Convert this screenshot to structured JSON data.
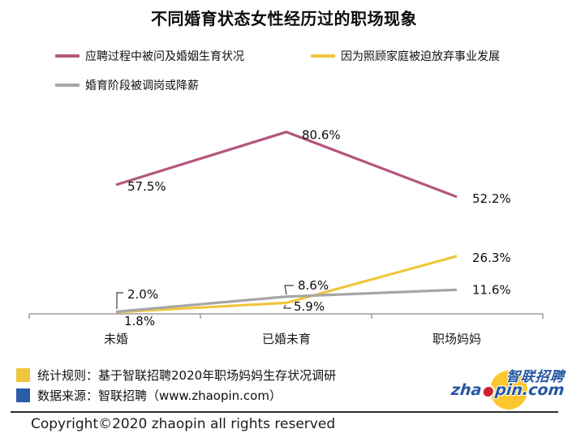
{
  "title": "不同婚育状态女性经历过的职场现象",
  "chart_data": {
    "type": "line",
    "categories": [
      "未婚",
      "已婚未育",
      "职场妈妈"
    ],
    "series": [
      {
        "name": "应聘过程中被问及婚姻生育状况",
        "color": "#b3567d",
        "values": [
          57.5,
          80.6,
          52.2
        ],
        "labels": [
          "57.5%",
          "80.6%",
          "52.2%"
        ]
      },
      {
        "name": "因为照顾家庭被迫放弃事业发展",
        "color": "#efc63e",
        "values": [
          1.8,
          5.9,
          26.3
        ],
        "labels": [
          "1.8%",
          "5.9%",
          "26.3%"
        ]
      },
      {
        "name": "婚育阶段被调岗或降薪",
        "color": "#a6a6a6",
        "values": [
          2.0,
          8.6,
          11.6
        ],
        "labels": [
          "2.0%",
          "8.6%",
          "11.6%"
        ]
      }
    ],
    "ylim": [
      0,
      85
    ],
    "grid": false,
    "legend_position": "top-left",
    "data_labels": true,
    "axis_color": "#9b9b9b"
  },
  "notes": [
    {
      "marker_color": "#efc63e",
      "text": "统计规则：基于智联招聘2020年职场妈妈生存状况调研"
    },
    {
      "marker_color": "#2b5ca8",
      "text": "数据来源：智联招聘（www.zhaopin.com）"
    }
  ],
  "logo": {
    "cn_text": "智联招聘",
    "url_prefix": "zha",
    "url_suffix": "pin.com",
    "yellow": "#fcc72e",
    "blue": "#2456a4",
    "red": "#ce2030"
  },
  "footer": "Copyright©2020  zhaopin all rights reserved"
}
